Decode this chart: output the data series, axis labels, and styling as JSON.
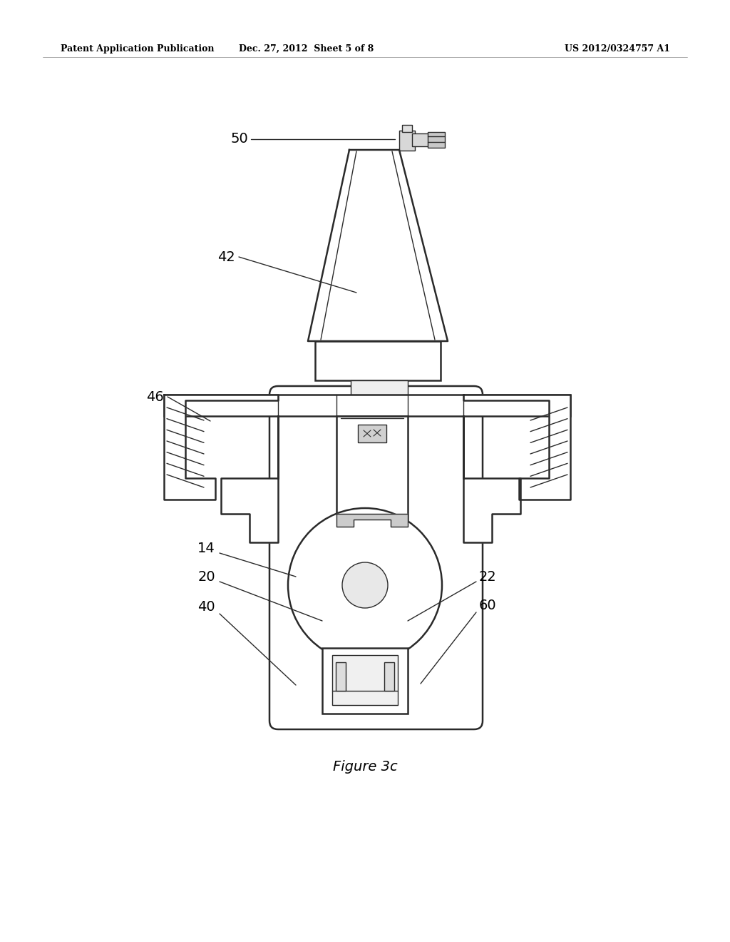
{
  "bg_color": "#ffffff",
  "line_color": "#2a2a2a",
  "header_left": "Patent Application Publication",
  "header_mid": "Dec. 27, 2012  Sheet 5 of 8",
  "header_right": "US 2012/0324757 A1",
  "figure_label": "Figure 3c",
  "lw_main": 1.8,
  "lw_thin": 1.0,
  "lw_med": 1.3
}
